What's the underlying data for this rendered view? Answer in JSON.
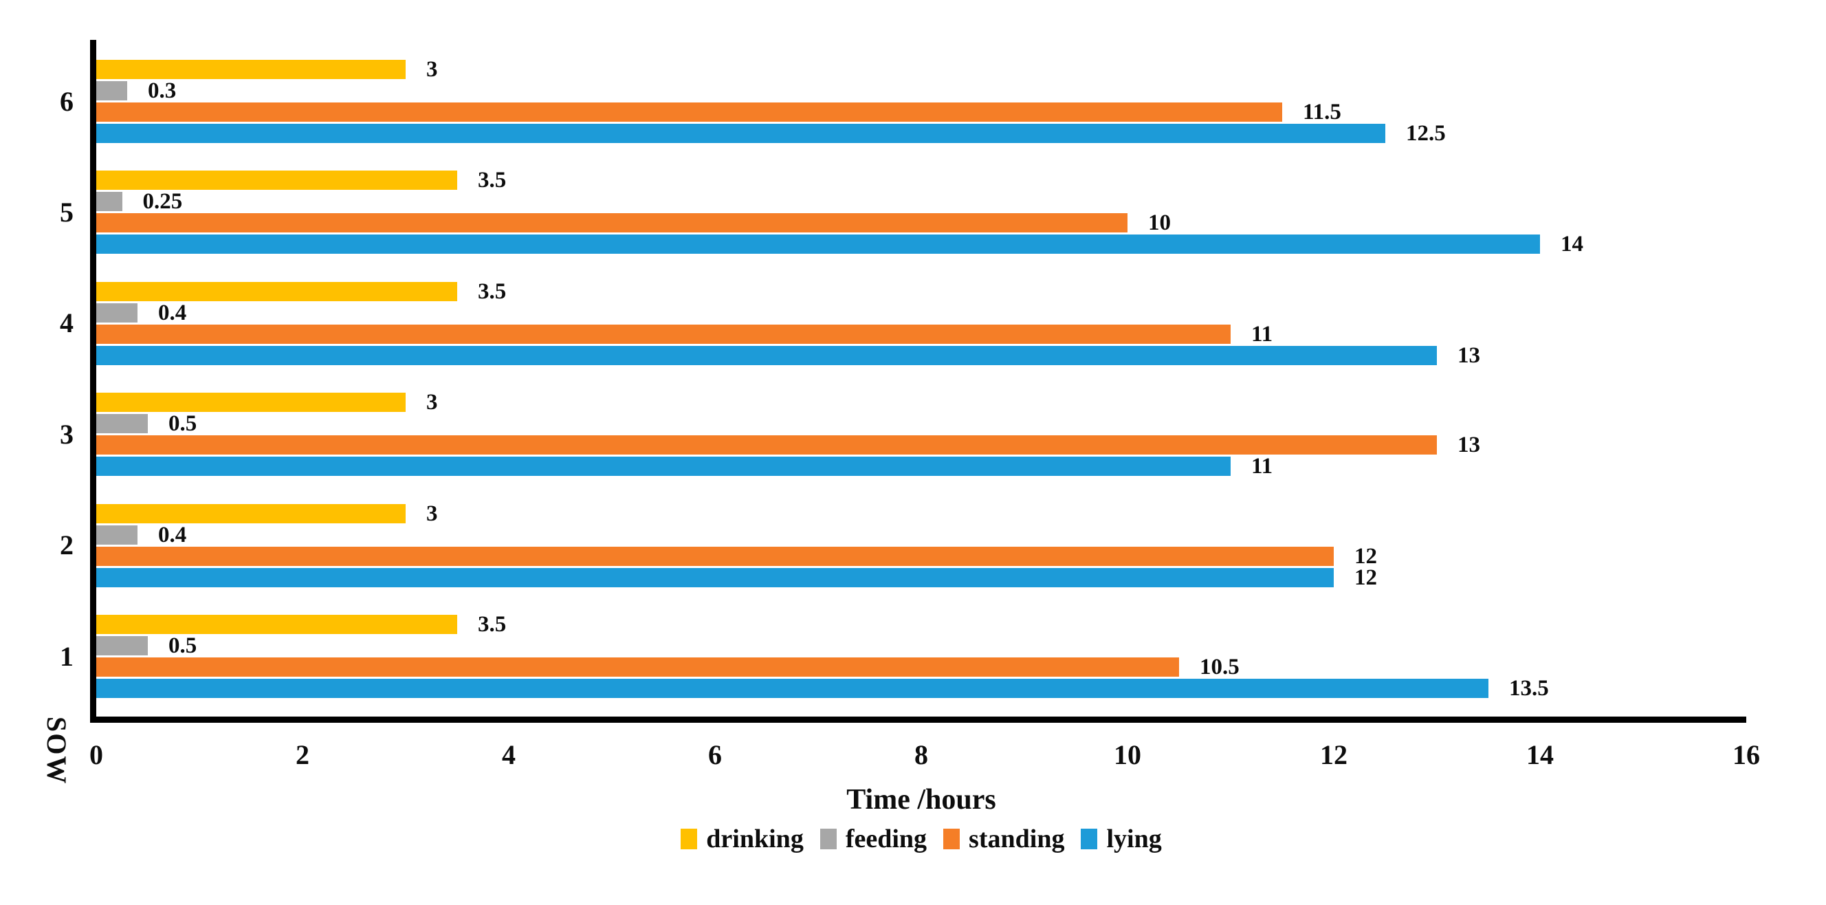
{
  "chart_data": {
    "type": "bar",
    "orientation": "horizontal",
    "title": "",
    "xlabel": "Time /hours",
    "ylabel": "SOW",
    "xlim": [
      0,
      16
    ],
    "xticks": [
      0,
      2,
      4,
      6,
      8,
      10,
      12,
      14,
      16
    ],
    "grid": false,
    "legend_position": "bottom-center",
    "value_labels_shown": true,
    "categories": [
      "1",
      "2",
      "3",
      "4",
      "5",
      "6"
    ],
    "display_order_top_to_bottom": [
      "6",
      "5",
      "4",
      "3",
      "2",
      "1"
    ],
    "bar_order_within_group_top_to_bottom": [
      "drinking",
      "feeding",
      "standing",
      "lying"
    ],
    "series": [
      {
        "name": "drinking",
        "color": "#FFC000",
        "values": [
          3.5,
          3,
          3,
          3.5,
          3.5,
          3
        ],
        "labels": [
          "3.5",
          "3",
          "3",
          "3.5",
          "3.5",
          "3"
        ]
      },
      {
        "name": "feeding",
        "color": "#A7A7A7",
        "values": [
          0.5,
          0.4,
          0.5,
          0.4,
          0.25,
          0.3
        ],
        "labels": [
          "0.5",
          "0.4",
          "0.5",
          "0.4",
          "0.25",
          "0.3"
        ]
      },
      {
        "name": "standing",
        "color": "#F57E27",
        "values": [
          10.5,
          12,
          13,
          11,
          10,
          11.5
        ],
        "labels": [
          "10.5",
          "12",
          "13",
          "11",
          "10",
          "11.5"
        ]
      },
      {
        "name": "lying",
        "color": "#1D9BD8",
        "values": [
          13.5,
          12,
          11,
          13,
          14,
          12.5
        ],
        "labels": [
          "13.5",
          "12",
          "11",
          "13",
          "14",
          "12.5"
        ]
      }
    ]
  },
  "axes": {
    "x_title": "Time /hours",
    "y_title": "SOW"
  },
  "legend": {
    "items": [
      {
        "label": "drinking",
        "color": "#FFC000"
      },
      {
        "label": "feeding",
        "color": "#A7A7A7"
      },
      {
        "label": "standing",
        "color": "#F57E27"
      },
      {
        "label": "lying",
        "color": "#1D9BD8"
      }
    ]
  },
  "colors": {
    "axis_line": "#000000",
    "text": "#0D0D0D",
    "background": "#FFFFFF"
  }
}
